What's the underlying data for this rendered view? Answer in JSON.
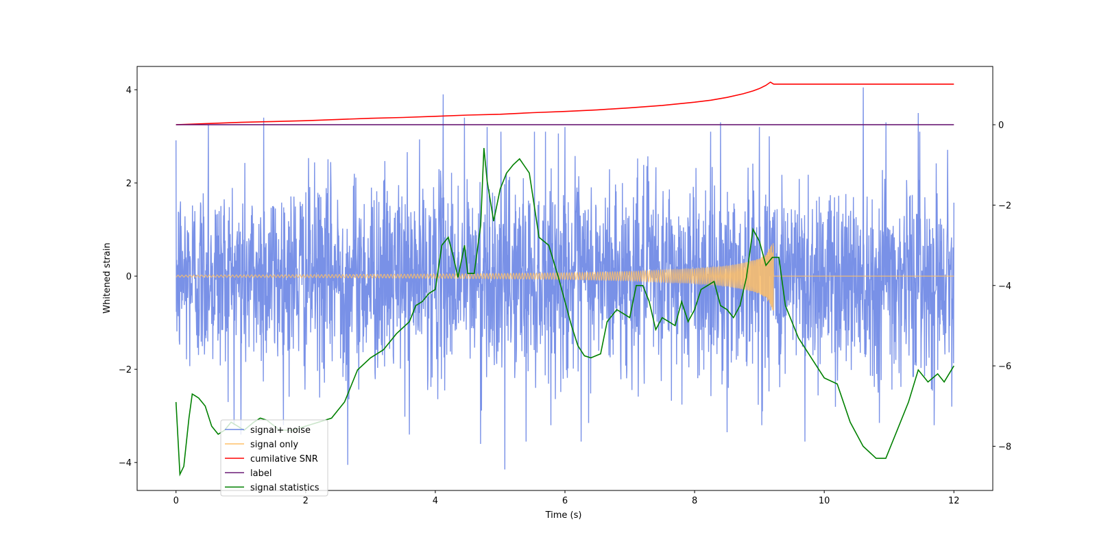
{
  "chart_data": {
    "type": "line",
    "xlabel": "Time (s)",
    "ylabel_left": "Whitened strain",
    "ylabel_right": "",
    "xlim": [
      -0.6,
      12.6
    ],
    "ylim_left": [
      -4.6,
      4.5
    ],
    "ylim_right": [
      -9.1,
      1.45
    ],
    "xticks": [
      0,
      2,
      4,
      6,
      8,
      10,
      12
    ],
    "yticks_left": [
      -4,
      -2,
      0,
      2,
      4
    ],
    "yticks_right": [
      -8,
      -6,
      -4,
      -2,
      0
    ],
    "grid": false,
    "legend_placement": "lower-left",
    "series": [
      {
        "name": "signal+ noise",
        "axis": "left",
        "color": "#6a85e4",
        "description": "whitened noisy strain, roughly Gaussian with std ~1.1, sampled densely from 0 to 12 s",
        "x_range": [
          0,
          12
        ],
        "spikes": [
          [
            0.5,
            3.25
          ],
          [
            1.35,
            3.4
          ],
          [
            4.12,
            3.9
          ],
          [
            4.45,
            3.4
          ],
          [
            4.8,
            3.2
          ],
          [
            5.07,
            -4.15
          ],
          [
            5.7,
            3.1
          ],
          [
            6.0,
            3.2
          ],
          [
            6.25,
            -3.55
          ],
          [
            8.4,
            3.3
          ],
          [
            9.0,
            3.2
          ],
          [
            9.15,
            3.0
          ],
          [
            10.6,
            4.05
          ],
          [
            10.95,
            3.3
          ],
          [
            11.45,
            3.5
          ],
          [
            2.65,
            -4.05
          ],
          [
            4.7,
            -3.6
          ],
          [
            5.4,
            -3.55
          ],
          [
            9.7,
            -3.55
          ],
          [
            1.0,
            -3.4
          ],
          [
            3.6,
            -3.4
          ],
          [
            8.5,
            -3.35
          ],
          [
            10.85,
            -3.15
          ]
        ]
      },
      {
        "name": "signal only",
        "axis": "left",
        "color": "#ffbf66",
        "description": "chirp signal growing in amplitude until merger at ~9.22 s then flat",
        "envelope": [
          [
            0,
            0.02
          ],
          [
            2,
            0.03
          ],
          [
            4,
            0.045
          ],
          [
            6,
            0.07
          ],
          [
            7,
            0.1
          ],
          [
            8,
            0.16
          ],
          [
            8.5,
            0.22
          ],
          [
            8.8,
            0.3
          ],
          [
            9.0,
            0.38
          ],
          [
            9.1,
            0.48
          ],
          [
            9.18,
            0.65
          ],
          [
            9.22,
            0.8
          ],
          [
            9.24,
            0.05
          ],
          [
            12,
            0.0
          ]
        ],
        "merger_time": 9.22
      },
      {
        "name": "cumilative SNR",
        "axis": "right",
        "color": "#ff0000",
        "points": [
          [
            0.0,
            0.0
          ],
          [
            0.5,
            0.03
          ],
          [
            1.0,
            0.06
          ],
          [
            1.5,
            0.08
          ],
          [
            2.0,
            0.1
          ],
          [
            2.5,
            0.13
          ],
          [
            3.0,
            0.16
          ],
          [
            3.5,
            0.18
          ],
          [
            4.0,
            0.21
          ],
          [
            4.5,
            0.24
          ],
          [
            5.0,
            0.26
          ],
          [
            5.5,
            0.3
          ],
          [
            6.0,
            0.33
          ],
          [
            6.5,
            0.37
          ],
          [
            7.0,
            0.42
          ],
          [
            7.5,
            0.48
          ],
          [
            8.0,
            0.56
          ],
          [
            8.25,
            0.61
          ],
          [
            8.5,
            0.68
          ],
          [
            8.75,
            0.77
          ],
          [
            8.9,
            0.84
          ],
          [
            9.0,
            0.9
          ],
          [
            9.1,
            0.98
          ],
          [
            9.17,
            1.06
          ],
          [
            9.22,
            1.01
          ],
          [
            10.0,
            1.01
          ],
          [
            11.0,
            1.01
          ],
          [
            12.0,
            1.01
          ]
        ]
      },
      {
        "name": "label",
        "axis": "right",
        "color": "#6a1a75",
        "points": [
          [
            0.0,
            0.0
          ],
          [
            12.0,
            0.0
          ]
        ]
      },
      {
        "name": "signal statistics",
        "axis": "right",
        "color": "#008000",
        "points": [
          [
            0.0,
            -6.9
          ],
          [
            0.06,
            -8.7
          ],
          [
            0.12,
            -8.5
          ],
          [
            0.2,
            -7.3
          ],
          [
            0.25,
            -6.7
          ],
          [
            0.3,
            -6.75
          ],
          [
            0.35,
            -6.8
          ],
          [
            0.45,
            -7.0
          ],
          [
            0.55,
            -7.5
          ],
          [
            0.65,
            -7.7
          ],
          [
            0.75,
            -7.6
          ],
          [
            0.85,
            -7.4
          ],
          [
            0.95,
            -7.5
          ],
          [
            1.05,
            -7.6
          ],
          [
            1.2,
            -7.4
          ],
          [
            1.3,
            -7.3
          ],
          [
            1.4,
            -7.35
          ],
          [
            1.6,
            -7.6
          ],
          [
            1.8,
            -7.6
          ],
          [
            2.0,
            -7.5
          ],
          [
            2.2,
            -7.4
          ],
          [
            2.4,
            -7.3
          ],
          [
            2.6,
            -6.9
          ],
          [
            2.8,
            -6.1
          ],
          [
            3.0,
            -5.8
          ],
          [
            3.2,
            -5.6
          ],
          [
            3.4,
            -5.2
          ],
          [
            3.6,
            -4.9
          ],
          [
            3.7,
            -4.5
          ],
          [
            3.8,
            -4.4
          ],
          [
            3.9,
            -4.2
          ],
          [
            4.0,
            -4.1
          ],
          [
            4.1,
            -3.0
          ],
          [
            4.2,
            -2.8
          ],
          [
            4.28,
            -3.3
          ],
          [
            4.35,
            -3.8
          ],
          [
            4.45,
            -3.0
          ],
          [
            4.5,
            -3.7
          ],
          [
            4.6,
            -3.7
          ],
          [
            4.7,
            -2.5
          ],
          [
            4.75,
            -0.58
          ],
          [
            4.8,
            -1.4
          ],
          [
            4.9,
            -2.4
          ],
          [
            5.0,
            -1.6
          ],
          [
            5.1,
            -1.2
          ],
          [
            5.2,
            -1.0
          ],
          [
            5.3,
            -0.85
          ],
          [
            5.45,
            -1.2
          ],
          [
            5.6,
            -2.8
          ],
          [
            5.75,
            -3.0
          ],
          [
            5.9,
            -3.8
          ],
          [
            6.0,
            -4.4
          ],
          [
            6.1,
            -5.0
          ],
          [
            6.2,
            -5.5
          ],
          [
            6.3,
            -5.75
          ],
          [
            6.4,
            -5.8
          ],
          [
            6.55,
            -5.7
          ],
          [
            6.65,
            -4.9
          ],
          [
            6.8,
            -4.6
          ],
          [
            6.9,
            -4.7
          ],
          [
            7.0,
            -4.8
          ],
          [
            7.1,
            -4.0
          ],
          [
            7.2,
            -4.0
          ],
          [
            7.3,
            -4.4
          ],
          [
            7.4,
            -5.1
          ],
          [
            7.5,
            -4.8
          ],
          [
            7.6,
            -4.9
          ],
          [
            7.7,
            -5.0
          ],
          [
            7.8,
            -4.4
          ],
          [
            7.9,
            -4.9
          ],
          [
            8.0,
            -4.6
          ],
          [
            8.1,
            -4.1
          ],
          [
            8.2,
            -4.0
          ],
          [
            8.3,
            -3.9
          ],
          [
            8.4,
            -4.5
          ],
          [
            8.5,
            -4.6
          ],
          [
            8.6,
            -4.8
          ],
          [
            8.7,
            -4.5
          ],
          [
            8.8,
            -3.8
          ],
          [
            8.9,
            -2.6
          ],
          [
            9.0,
            -2.9
          ],
          [
            9.1,
            -3.5
          ],
          [
            9.2,
            -3.3
          ],
          [
            9.3,
            -3.3
          ],
          [
            9.4,
            -4.5
          ],
          [
            9.6,
            -5.3
          ],
          [
            9.8,
            -5.8
          ],
          [
            10.0,
            -6.3
          ],
          [
            10.2,
            -6.45
          ],
          [
            10.4,
            -7.4
          ],
          [
            10.6,
            -8.0
          ],
          [
            10.8,
            -8.3
          ],
          [
            10.95,
            -8.3
          ],
          [
            11.1,
            -7.7
          ],
          [
            11.3,
            -6.9
          ],
          [
            11.45,
            -6.1
          ],
          [
            11.6,
            -6.4
          ],
          [
            11.75,
            -6.2
          ],
          [
            11.85,
            -6.4
          ],
          [
            12.0,
            -6.0
          ]
        ]
      }
    ]
  }
}
